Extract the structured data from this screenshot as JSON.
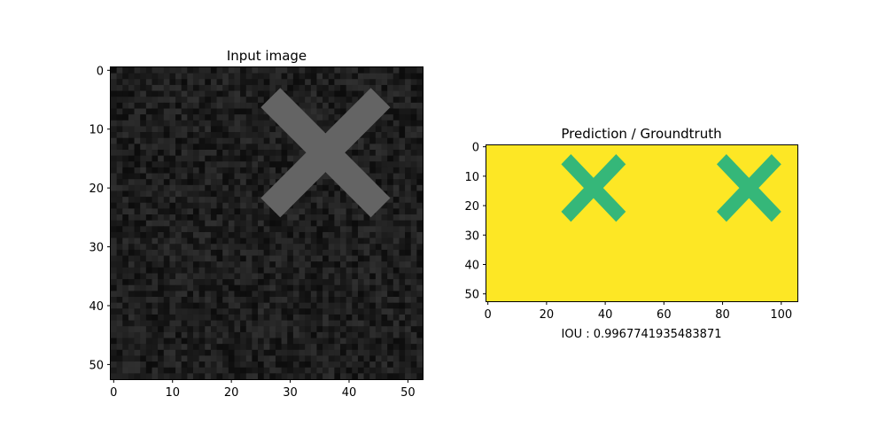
{
  "chart_data": [
    {
      "type": "heatmap",
      "title": "Input image",
      "xlabel": "",
      "ylabel": "",
      "xlim": [
        -0.5,
        52.5
      ],
      "ylim": [
        52.5,
        -0.5
      ],
      "x_ticks": [
        "0",
        "10",
        "20",
        "30",
        "40",
        "50"
      ],
      "y_ticks": [
        "0",
        "10",
        "20",
        "30",
        "40",
        "50"
      ],
      "grid": false,
      "colormap": "gray",
      "background_color": "#1c1c1c",
      "shape_color": "#646464",
      "shape": "cross",
      "shape_center": [
        36,
        14
      ],
      "shape_x_extent": [
        25,
        47
      ],
      "shape_y_extent": [
        3,
        25
      ]
    },
    {
      "type": "heatmap",
      "title": "Prediction / Groundtruth",
      "xlabel": "IOU : 0.9967741935483871",
      "ylabel": "",
      "xlim": [
        -0.5,
        105.5
      ],
      "ylim": [
        52.5,
        -0.5
      ],
      "x_ticks": [
        "0",
        "20",
        "40",
        "60",
        "80",
        "100"
      ],
      "y_ticks": [
        "0",
        "10",
        "20",
        "30",
        "40",
        "50"
      ],
      "grid": false,
      "colormap": "viridis",
      "background_color": "#fde725",
      "shape_color": "#35b779",
      "panels": [
        {
          "name": "Prediction",
          "shape": "cross",
          "shape_center": [
            36,
            14
          ],
          "shape_x_extent": [
            25,
            47
          ],
          "shape_y_extent": [
            2,
            25
          ]
        },
        {
          "name": "Groundtruth",
          "shape": "cross",
          "shape_center": [
            89,
            14
          ],
          "shape_x_extent": [
            78,
            100
          ],
          "shape_y_extent": [
            2,
            25
          ]
        }
      ]
    }
  ]
}
